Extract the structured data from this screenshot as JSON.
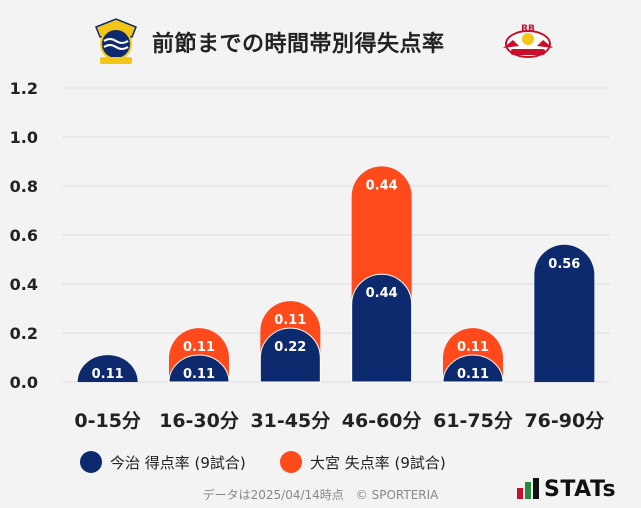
{
  "title": "前節までの時間帯別得失点率",
  "chart_data": {
    "type": "bar",
    "title": "前節までの時間帯別得失点率",
    "categories": [
      "0-15分",
      "16-30分",
      "31-45分",
      "46-60分",
      "61-75分",
      "76-90分"
    ],
    "series": [
      {
        "name": "今治 得点率 (9試合)",
        "color": "#0e2a6e",
        "values": [
          0.11,
          0.11,
          0.22,
          0.44,
          0.11,
          0.56
        ],
        "labels": [
          "0.11",
          "0.11",
          "0.22",
          "0.44",
          "0.11",
          "0.56"
        ]
      },
      {
        "name": "大宮 失点率 (9試合)",
        "color": "#ff4a1c",
        "values": [
          0,
          0.11,
          0.11,
          0.44,
          0.11,
          0
        ],
        "labels": [
          "",
          "0.11",
          "0.11",
          "0.44",
          "0.11",
          ""
        ]
      }
    ],
    "yticks": [
      "0.0",
      "0.2",
      "0.4",
      "0.6",
      "0.8",
      "1.0",
      "1.2"
    ],
    "ylim": [
      0,
      1.2
    ],
    "xlabel": "",
    "ylabel": "",
    "grid": true,
    "legend_position": "bottom-left"
  },
  "legend": [
    {
      "label": "今治 得点率 (9試合)",
      "color": "#0e2a6e"
    },
    {
      "label": "大宮 失点率 (9試合)",
      "color": "#ff4a1c"
    }
  ],
  "logos": {
    "left_team": "今治",
    "right_team": "大宮",
    "right_badge_text": "RB"
  },
  "footer": "データは2025/04/14時点　© SPORTERIA",
  "brand": "STATs"
}
